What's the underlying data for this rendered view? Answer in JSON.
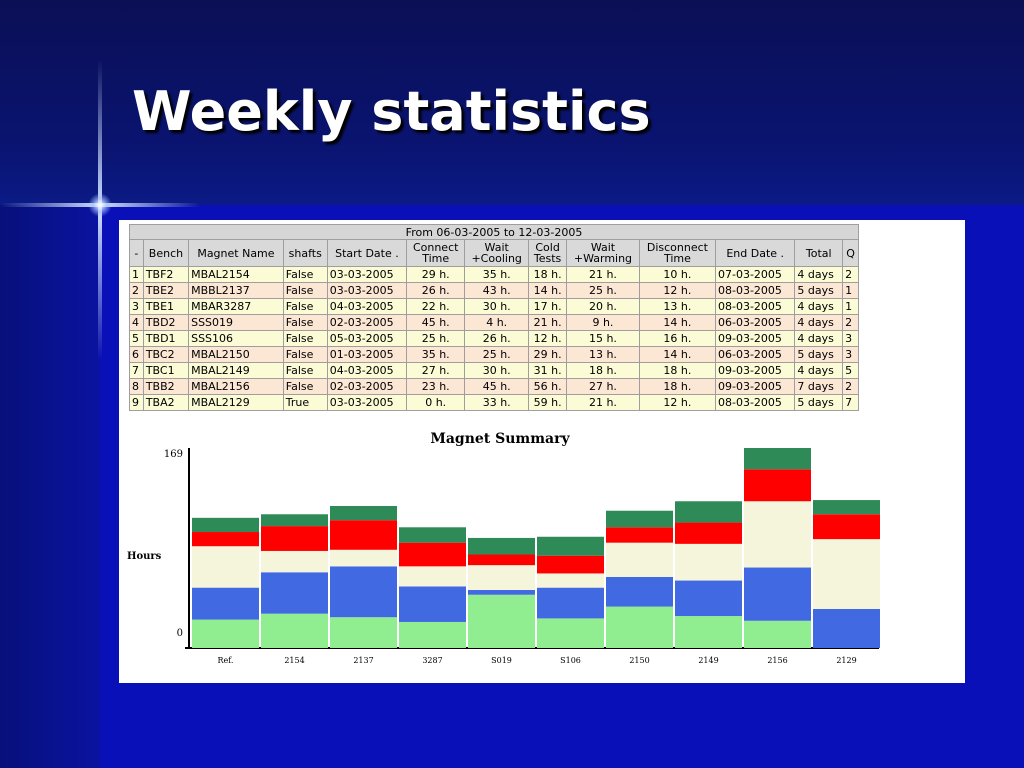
{
  "slide": {
    "title": "Weekly statistics"
  },
  "table": {
    "caption": "From 06-03-2005 to 12-03-2005",
    "headers": [
      "-",
      "Bench",
      "Magnet Name",
      "shafts",
      "Start Date .",
      "Connect\nTime",
      "Wait\n+Cooling",
      "Cold\nTests",
      "Wait\n+Warming",
      "Disconnect\nTime",
      "End Date .",
      "Total",
      "Q"
    ],
    "rows": [
      [
        "1",
        "TBF2",
        "MBAL2154",
        "False",
        "03-03-2005",
        "29 h.",
        "35 h.",
        "18 h.",
        "21 h.",
        "10 h.",
        "07-03-2005",
        "4 days",
        "2"
      ],
      [
        "2",
        "TBE2",
        "MBBL2137",
        "False",
        "03-03-2005",
        "26 h.",
        "43 h.",
        "14 h.",
        "25 h.",
        "12 h.",
        "08-03-2005",
        "5 days",
        "1"
      ],
      [
        "3",
        "TBE1",
        "MBAR3287",
        "False",
        "04-03-2005",
        "22 h.",
        "30 h.",
        "17 h.",
        "20 h.",
        "13 h.",
        "08-03-2005",
        "4 days",
        "1"
      ],
      [
        "4",
        "TBD2",
        "SSS019",
        "False",
        "02-03-2005",
        "45 h.",
        "4 h.",
        "21 h.",
        "9 h.",
        "14 h.",
        "06-03-2005",
        "4 days",
        "2"
      ],
      [
        "5",
        "TBD1",
        "SSS106",
        "False",
        "05-03-2005",
        "25 h.",
        "26 h.",
        "12 h.",
        "15 h.",
        "16 h.",
        "09-03-2005",
        "4 days",
        "3"
      ],
      [
        "6",
        "TBC2",
        "MBAL2150",
        "False",
        "01-03-2005",
        "35 h.",
        "25 h.",
        "29 h.",
        "13 h.",
        "14 h.",
        "06-03-2005",
        "5 days",
        "3"
      ],
      [
        "7",
        "TBC1",
        "MBAL2149",
        "False",
        "04-03-2005",
        "27 h.",
        "30 h.",
        "31 h.",
        "18 h.",
        "18 h.",
        "09-03-2005",
        "4 days",
        "5"
      ],
      [
        "8",
        "TBB2",
        "MBAL2156",
        "False",
        "02-03-2005",
        "23 h.",
        "45 h.",
        "56 h.",
        "27 h.",
        "18 h.",
        "09-03-2005",
        "7 days",
        "2"
      ],
      [
        "9",
        "TBA2",
        "MBAL2129",
        "True",
        "03-03-2005",
        "0 h.",
        "33 h.",
        "59 h.",
        "21 h.",
        "12 h.",
        "08-03-2005",
        "5 days",
        "7"
      ]
    ]
  },
  "chart_data": {
    "type": "bar",
    "stacked": true,
    "title": "Magnet Summary",
    "xlabel": "",
    "ylabel": "Hours",
    "ylim": [
      0,
      169
    ],
    "yticks": [
      "169",
      "0"
    ],
    "categories": [
      "Ref.",
      "2154",
      "2137",
      "3287",
      "S019",
      "S106",
      "2150",
      "2149",
      "2156",
      "2129"
    ],
    "series": [
      {
        "color": "#90ee90",
        "values": [
          24,
          29,
          26,
          22,
          45,
          25,
          35,
          27,
          23,
          0
        ]
      },
      {
        "color": "#4169e1",
        "values": [
          27,
          35,
          43,
          30,
          4,
          26,
          25,
          30,
          45,
          33
        ]
      },
      {
        "color": "#f5f5dc",
        "values": [
          35,
          18,
          14,
          17,
          21,
          12,
          29,
          31,
          56,
          59
        ]
      },
      {
        "color": "#ff0000",
        "values": [
          12,
          21,
          25,
          20,
          9,
          15,
          13,
          18,
          27,
          21
        ]
      },
      {
        "color": "#2e8b57",
        "values": [
          12,
          10,
          12,
          13,
          14,
          16,
          14,
          18,
          18,
          12
        ]
      }
    ],
    "grid": false,
    "legend": "none"
  }
}
